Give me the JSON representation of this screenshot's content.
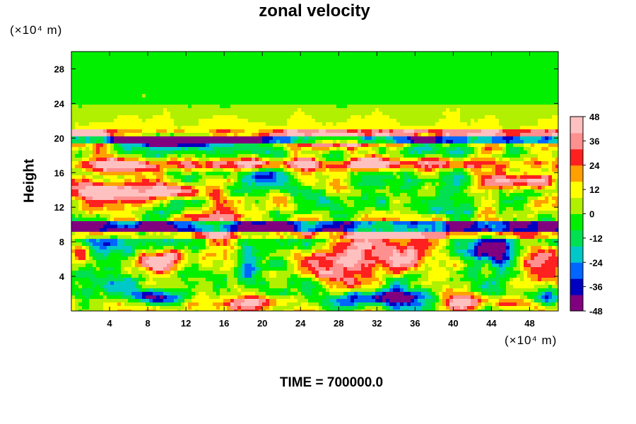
{
  "chart_data": {
    "type": "heatmap",
    "title": "zonal velocity",
    "ylabel": "Height",
    "x_unit": "(×10⁴ m)",
    "y_unit": "(×10⁴ m)",
    "x_ticks": [
      4,
      8,
      12,
      16,
      20,
      24,
      28,
      32,
      36,
      40,
      44,
      48
    ],
    "y_ticks": [
      4,
      8,
      12,
      16,
      20,
      24,
      28
    ],
    "xlim": [
      0,
      51
    ],
    "ylim": [
      0,
      30
    ],
    "colorbar": {
      "ticks": [
        48,
        36,
        24,
        12,
        0,
        -12,
        -24,
        -36,
        -48
      ],
      "range": [
        -48,
        48
      ],
      "colors": [
        "#800080",
        "#0000c0",
        "#0066ff",
        "#00c8c8",
        "#00e050",
        "#00f000",
        "#b0f000",
        "#ffff00",
        "#ffa000",
        "#ff2020",
        "#ff9090",
        "#ffc0c0"
      ]
    },
    "features": [
      {
        "x": 23,
        "y": 17,
        "w": 28,
        "h": 0.7,
        "v": 46
      },
      {
        "x": 29.5,
        "y": 19.5,
        "w": 4.5,
        "h": 0.8,
        "v": 45
      },
      {
        "x": 5,
        "y": 16.8,
        "w": 3.5,
        "h": 0.9,
        "v": 36
      },
      {
        "x": 3,
        "y": 13.8,
        "w": 3.5,
        "h": 1.0,
        "v": 44
      },
      {
        "x": 11,
        "y": 13.8,
        "w": 3.5,
        "h": 0.9,
        "v": 44
      },
      {
        "x": 47,
        "y": 15.0,
        "w": 3.5,
        "h": 1.0,
        "v": 44
      },
      {
        "x": 30,
        "y": 6.5,
        "w": 5.5,
        "h": 2.6,
        "v": 46
      },
      {
        "x": 10.5,
        "y": 6.0,
        "w": 3.0,
        "h": 1.4,
        "v": 46
      },
      {
        "x": 49,
        "y": 6.0,
        "w": 2.5,
        "h": 2.5,
        "v": 46
      },
      {
        "x": 42,
        "y": 1.0,
        "w": 5,
        "h": 1.0,
        "v": 44
      },
      {
        "x": 20,
        "y": 1.0,
        "w": 3.5,
        "h": 1.0,
        "v": 42
      },
      {
        "x": 1,
        "y": 6.5,
        "w": 1.2,
        "h": 1.2,
        "v": 40
      },
      {
        "x": 10,
        "y": 19.6,
        "w": 4,
        "h": 0.7,
        "v": -46
      },
      {
        "x": 44,
        "y": 6.5,
        "w": 3.0,
        "h": 1.8,
        "v": -47
      },
      {
        "x": 18.5,
        "y": 5.0,
        "w": 1.4,
        "h": 2.0,
        "v": -40
      },
      {
        "x": 32,
        "y": 1.5,
        "w": 5.5,
        "h": 0.9,
        "v": -46
      },
      {
        "x": 9,
        "y": 1.5,
        "w": 3,
        "h": 0.8,
        "v": -44
      },
      {
        "x": 50,
        "y": 1.5,
        "w": 2.0,
        "h": 1.0,
        "v": -46
      },
      {
        "x": 20,
        "y": 15.5,
        "w": 2.0,
        "h": 0.8,
        "v": -22
      },
      {
        "x": 37,
        "y": 11.5,
        "w": 3.0,
        "h": 0.7,
        "v": -20
      },
      {
        "x": 16.5,
        "y": 10.8,
        "w": 4.0,
        "h": 0.7,
        "v": 22
      }
    ]
  },
  "footer": {
    "time_label": "TIME = 700000.0"
  }
}
